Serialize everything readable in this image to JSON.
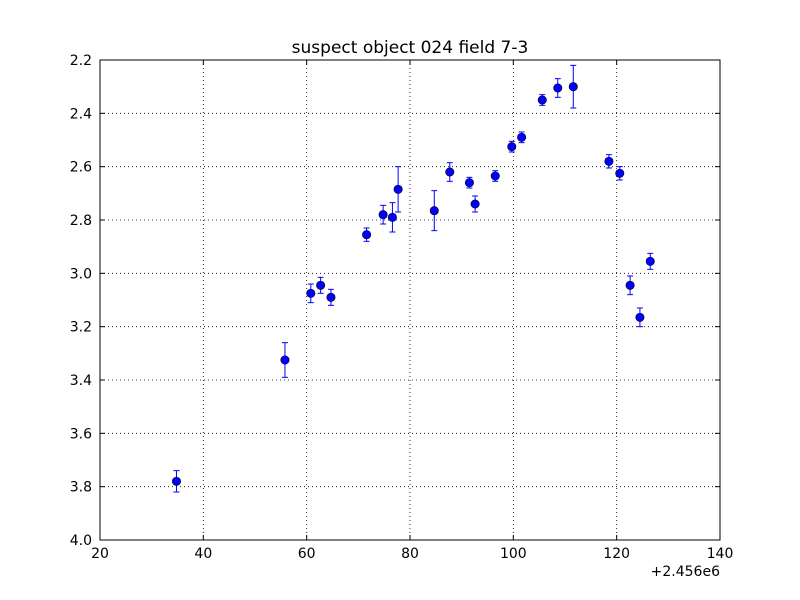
{
  "chart_data": {
    "type": "scatter",
    "title": "suspect object 024 field 7-3",
    "xlabel": "",
    "ylabel": "",
    "x_offset_label": "+2.456e6",
    "xlim": [
      20,
      140
    ],
    "ylim": [
      4.0,
      2.2
    ],
    "y_inverted": true,
    "x_ticks": [
      20,
      40,
      60,
      80,
      100,
      120,
      140
    ],
    "x_tick_labels": [
      "20",
      "40",
      "60",
      "80",
      "100",
      "120",
      "140"
    ],
    "y_ticks": [
      2.2,
      2.4,
      2.6,
      2.8,
      3.0,
      3.2,
      3.4,
      3.6,
      3.8,
      4.0
    ],
    "y_tick_labels": [
      "2.2",
      "2.4",
      "2.6",
      "2.8",
      "3.0",
      "3.2",
      "3.4",
      "3.6",
      "3.8",
      "4.0"
    ],
    "grid": true,
    "marker_color": "#0000ff",
    "error_color": "#0000ff",
    "points": [
      {
        "x": 34.8,
        "y": 3.78,
        "err": 0.04
      },
      {
        "x": 55.8,
        "y": 3.325,
        "err": 0.065
      },
      {
        "x": 60.8,
        "y": 3.075,
        "err": 0.035
      },
      {
        "x": 62.7,
        "y": 3.045,
        "err": 0.03
      },
      {
        "x": 64.7,
        "y": 3.09,
        "err": 0.03
      },
      {
        "x": 71.6,
        "y": 2.855,
        "err": 0.025
      },
      {
        "x": 74.8,
        "y": 2.78,
        "err": 0.035
      },
      {
        "x": 76.6,
        "y": 2.79,
        "err": 0.055
      },
      {
        "x": 77.7,
        "y": 2.685,
        "err": 0.085
      },
      {
        "x": 84.7,
        "y": 2.765,
        "err": 0.075
      },
      {
        "x": 87.7,
        "y": 2.62,
        "err": 0.035
      },
      {
        "x": 91.5,
        "y": 2.66,
        "err": 0.02
      },
      {
        "x": 92.6,
        "y": 2.74,
        "err": 0.03
      },
      {
        "x": 96.5,
        "y": 2.635,
        "err": 0.02
      },
      {
        "x": 99.7,
        "y": 2.525,
        "err": 0.02
      },
      {
        "x": 101.6,
        "y": 2.49,
        "err": 0.02
      },
      {
        "x": 105.6,
        "y": 2.35,
        "err": 0.02
      },
      {
        "x": 108.6,
        "y": 2.305,
        "err": 0.035
      },
      {
        "x": 111.6,
        "y": 2.3,
        "err": 0.08
      },
      {
        "x": 118.5,
        "y": 2.58,
        "err": 0.025
      },
      {
        "x": 120.6,
        "y": 2.625,
        "err": 0.025
      },
      {
        "x": 122.6,
        "y": 3.045,
        "err": 0.035
      },
      {
        "x": 124.5,
        "y": 3.165,
        "err": 0.035
      },
      {
        "x": 126.5,
        "y": 2.955,
        "err": 0.03
      }
    ]
  }
}
